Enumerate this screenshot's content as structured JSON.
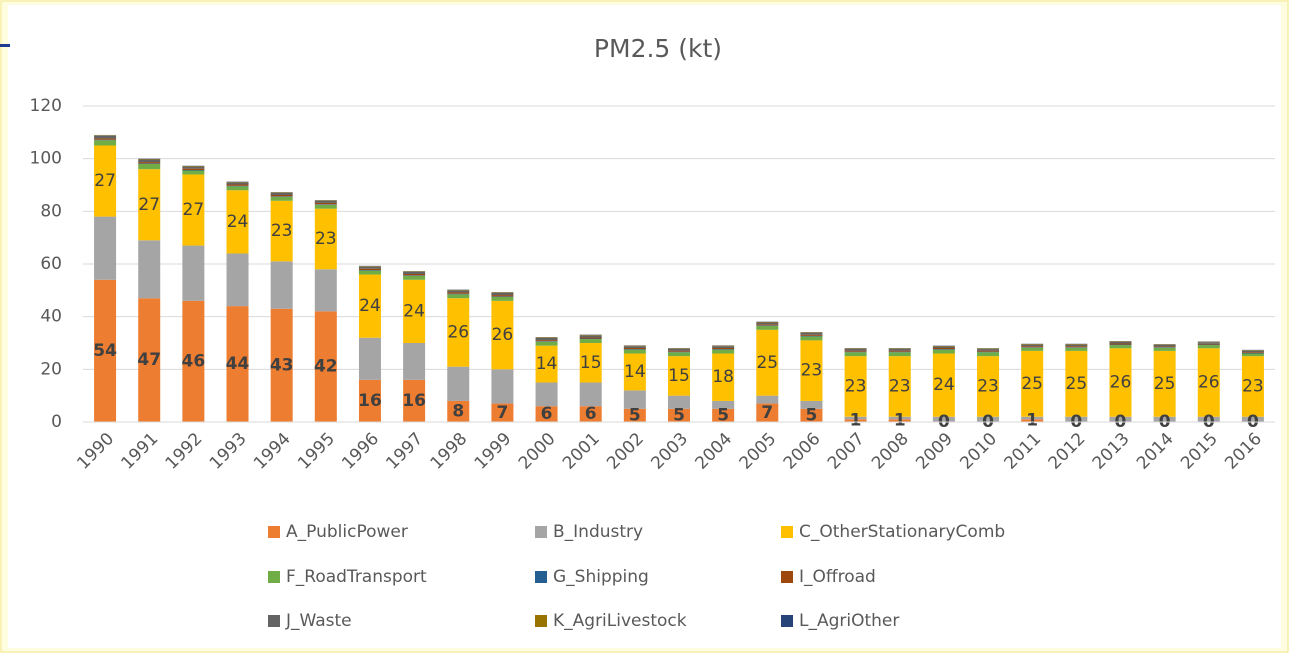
{
  "chart_data": {
    "type": "stacked_bar",
    "title": "PM2.5 (kt)",
    "categories": [
      "1990",
      "1991",
      "1992",
      "1993",
      "1994",
      "1995",
      "1996",
      "1997",
      "1998",
      "1999",
      "2000",
      "2001",
      "2002",
      "2003",
      "2004",
      "2005",
      "2006",
      "2007",
      "2008",
      "2009",
      "2010",
      "2011",
      "2012",
      "2013",
      "2014",
      "2015",
      "2016"
    ],
    "ylim": [
      0,
      120
    ],
    "yticks": [
      0,
      20,
      40,
      60,
      80,
      100,
      120
    ],
    "grid": true,
    "series": [
      {
        "name": "A_PublicPower",
        "color": "#ed7d31",
        "data_labels": true,
        "values": [
          54,
          47,
          46,
          44,
          43,
          42,
          16,
          16,
          8,
          7,
          6,
          6,
          5,
          5,
          5,
          7,
          5,
          1,
          1,
          0,
          0,
          1,
          0,
          0,
          0,
          0,
          0
        ]
      },
      {
        "name": "B_Industry",
        "color": "#a5a5a5",
        "values": [
          24,
          22,
          21,
          20,
          18,
          16,
          16,
          14,
          13,
          13,
          9,
          9,
          7,
          5,
          3,
          3,
          3,
          1,
          1,
          2,
          2,
          1,
          2,
          2,
          2,
          2,
          2
        ]
      },
      {
        "name": "C_OtherStationaryComb",
        "color": "#ffc000",
        "data_labels": true,
        "values": [
          27,
          27,
          27,
          24,
          23,
          23,
          24,
          24,
          26,
          26,
          14,
          15,
          14,
          15,
          18,
          25,
          23,
          23,
          23,
          24,
          23,
          25,
          25,
          26,
          25,
          26,
          23
        ]
      },
      {
        "name": "F_RoadTransport",
        "color": "#70ad47",
        "values": [
          2,
          2,
          1.5,
          1.5,
          1.5,
          1.5,
          1.5,
          1.5,
          1.5,
          1.5,
          1.5,
          1.5,
          1.5,
          1.5,
          1.5,
          1.5,
          1.5,
          1.5,
          1.5,
          1.5,
          1.5,
          1.2,
          1.2,
          1.2,
          1.2,
          1.2,
          1
        ]
      },
      {
        "name": "G_Shipping",
        "color": "#255e91",
        "values": [
          0.2,
          0.2,
          0.2,
          0.2,
          0.2,
          0.2,
          0.2,
          0.2,
          0.2,
          0.2,
          0.2,
          0.2,
          0.2,
          0.2,
          0.2,
          0.2,
          0.2,
          0.2,
          0.2,
          0.2,
          0.2,
          0.2,
          0.2,
          0.2,
          0.2,
          0.2,
          0.2
        ]
      },
      {
        "name": "I_Offroad",
        "color": "#9e480e",
        "values": [
          0.5,
          0.5,
          0.5,
          0.5,
          0.5,
          0.5,
          0.5,
          0.5,
          0.5,
          0.5,
          0.4,
          0.4,
          0.4,
          0.4,
          0.4,
          0.4,
          0.4,
          0.4,
          0.4,
          0.4,
          0.4,
          0.4,
          0.4,
          0.4,
          0.3,
          0.3,
          0.3
        ]
      },
      {
        "name": "J_Waste",
        "color": "#636363",
        "values": [
          1,
          1,
          0.8,
          0.8,
          0.8,
          0.8,
          0.8,
          0.8,
          0.8,
          0.8,
          0.8,
          0.8,
          0.7,
          0.7,
          0.7,
          0.7,
          0.7,
          0.7,
          0.7,
          0.6,
          0.6,
          0.6,
          0.6,
          0.6,
          0.6,
          0.6,
          0.6
        ]
      },
      {
        "name": "K_AgriLivestock",
        "color": "#997300",
        "values": [
          0.2,
          0.2,
          0.2,
          0.2,
          0.2,
          0.2,
          0.2,
          0.2,
          0.2,
          0.2,
          0.2,
          0.2,
          0.2,
          0.2,
          0.2,
          0.2,
          0.2,
          0.2,
          0.2,
          0.2,
          0.2,
          0.2,
          0.2,
          0.2,
          0.2,
          0.2,
          0.2
        ]
      },
      {
        "name": "L_AgriOther",
        "color": "#264478",
        "values": [
          0.1,
          0.1,
          0.1,
          0.1,
          0.1,
          0.1,
          0.1,
          0.1,
          0.1,
          0.1,
          0.1,
          0.1,
          0.1,
          0.1,
          0.1,
          0.1,
          0.1,
          0.1,
          0.1,
          0.1,
          0.1,
          0.1,
          0.1,
          0.1,
          0.1,
          0.1,
          0.1
        ]
      }
    ]
  }
}
